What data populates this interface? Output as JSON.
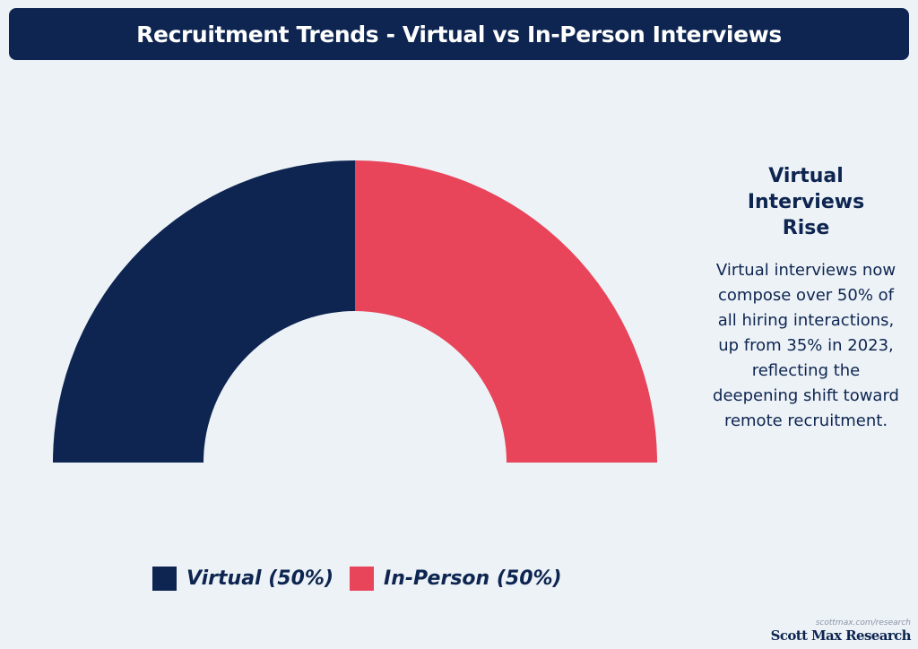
{
  "header": {
    "title": "Recruitment Trends - Virtual vs In-Person Interviews"
  },
  "chart_data": {
    "type": "pie",
    "variant": "semi-donut",
    "categories": [
      "Virtual",
      "In-Person"
    ],
    "values": [
      50,
      50
    ],
    "unit": "%",
    "colors": [
      "#0d2550",
      "#e8445a"
    ],
    "legend_labels": [
      "Virtual (50%)",
      "In-Person (50%)"
    ],
    "legend_position": "bottom"
  },
  "side_panel": {
    "heading": "Virtual Interviews Rise",
    "body": "Virtual interviews now compose over 50% of all hiring interactions, up from 35% in 2023, reflecting the deepening shift toward remote recruitment."
  },
  "branding": {
    "url": "scottmax.com/research",
    "name": "Scott Max Research"
  }
}
